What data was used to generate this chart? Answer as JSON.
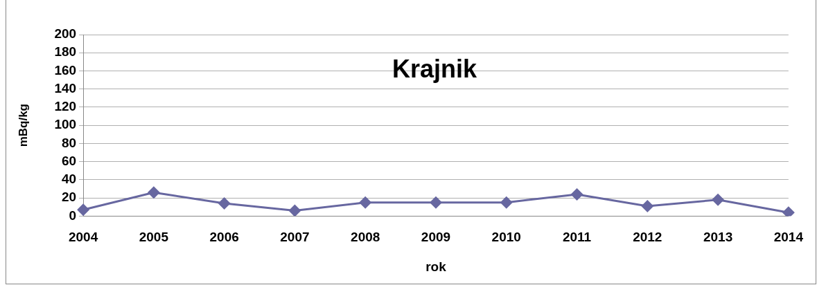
{
  "chart_data": {
    "type": "line",
    "title": "Krajnik",
    "xlabel": "rok",
    "ylabel": "mBq/kg",
    "categories": [
      "2004",
      "2005",
      "2006",
      "2007",
      "2008",
      "2009",
      "2010",
      "2011",
      "2012",
      "2013",
      "2014"
    ],
    "series": [
      {
        "color": "#6767a0",
        "values": [
          7,
          26,
          14,
          6,
          15,
          15,
          15,
          24,
          11,
          18,
          4
        ]
      }
    ],
    "ylim": [
      0,
      200
    ],
    "yticks": [
      0,
      20,
      40,
      60,
      80,
      100,
      120,
      140,
      160,
      180,
      200
    ],
    "grid": "y",
    "legend": false,
    "marker": "diamond",
    "line_style": "solid"
  }
}
